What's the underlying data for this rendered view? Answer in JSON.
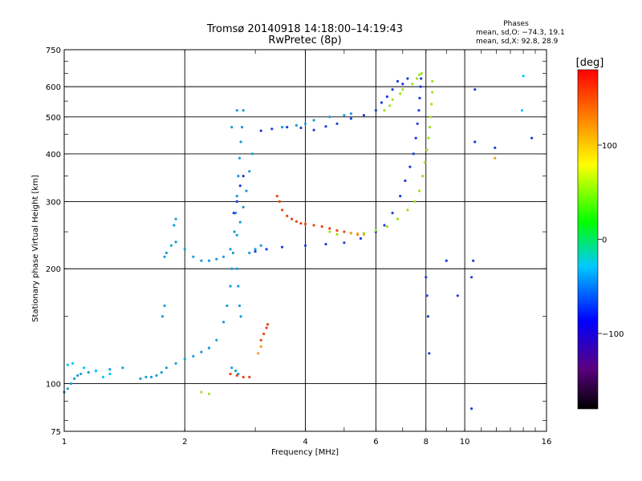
{
  "chart_data": {
    "type": "scatter",
    "title": "Tromsø 20140918 14:18:00–14:19:43",
    "subtitle": "RwPretec (8p)",
    "phase_stats": {
      "heading": "Phases",
      "line_o": "mean, sd,O: −74.3, 19.1",
      "line_x": "mean, sd,X:  92.8, 28.9"
    },
    "xlabel": "Frequency [MHz]",
    "ylabel": "Stationary phase Virtual Height [km]",
    "x_scale": "log",
    "y_scale": "log",
    "xlim": [
      1,
      16
    ],
    "ylim": [
      75,
      750
    ],
    "x_ticks": [
      1,
      2,
      4,
      6,
      8,
      10,
      16
    ],
    "y_ticks": [
      75,
      100,
      200,
      300,
      400,
      500,
      600,
      750
    ],
    "grid": true,
    "colorbar": {
      "label": "[deg]",
      "range": [
        -180,
        180
      ],
      "ticks": [
        100,
        0,
        -100
      ],
      "colors": [
        "#000000",
        "#5a0080",
        "#0000ff",
        "#00c8ff",
        "#00ff00",
        "#ffff00",
        "#ff8000",
        "#ff0000"
      ]
    },
    "series": [
      {
        "color": "#1a9bd7",
        "points": [
          [
            1.0,
            95
          ],
          [
            1.02,
            97
          ],
          [
            1.04,
            100
          ],
          [
            1.06,
            103
          ],
          [
            1.08,
            105
          ],
          [
            1.1,
            106
          ],
          [
            1.15,
            107
          ],
          [
            1.2,
            108
          ],
          [
            1.3,
            109
          ],
          [
            1.4,
            110
          ],
          [
            1.55,
            103
          ],
          [
            1.6,
            104
          ],
          [
            1.65,
            104
          ],
          [
            1.7,
            105
          ],
          [
            1.75,
            107
          ],
          [
            1.8,
            110
          ],
          [
            1.9,
            113
          ],
          [
            2.0,
            116
          ],
          [
            2.1,
            118
          ],
          [
            2.2,
            121
          ],
          [
            2.3,
            124
          ],
          [
            2.4,
            130
          ],
          [
            2.5,
            145
          ],
          [
            2.55,
            160
          ],
          [
            2.6,
            180
          ],
          [
            2.62,
            200
          ],
          [
            2.64,
            220
          ],
          [
            2.66,
            250
          ],
          [
            2.68,
            280
          ],
          [
            2.7,
            310
          ],
          [
            2.72,
            350
          ],
          [
            2.74,
            390
          ],
          [
            2.76,
            430
          ],
          [
            2.78,
            470
          ],
          [
            2.8,
            520
          ],
          [
            2.7,
            200
          ],
          [
            2.72,
            180
          ],
          [
            2.74,
            160
          ],
          [
            2.76,
            150
          ],
          [
            1.78,
            215
          ],
          [
            1.8,
            220
          ],
          [
            1.85,
            230
          ],
          [
            1.9,
            235
          ],
          [
            2.0,
            225
          ],
          [
            2.1,
            215
          ],
          [
            2.2,
            210
          ],
          [
            2.3,
            210
          ],
          [
            2.4,
            212
          ],
          [
            2.5,
            215
          ],
          [
            2.6,
            225
          ],
          [
            2.7,
            245
          ],
          [
            2.75,
            265
          ],
          [
            2.8,
            290
          ],
          [
            2.85,
            320
          ],
          [
            2.9,
            360
          ],
          [
            2.95,
            400
          ],
          [
            2.9,
            220
          ],
          [
            3.0,
            225
          ],
          [
            3.1,
            230
          ],
          [
            1.88,
            260
          ],
          [
            1.9,
            270
          ],
          [
            1.76,
            150
          ],
          [
            1.78,
            160
          ],
          [
            2.62,
            110
          ],
          [
            2.68,
            108
          ],
          [
            2.72,
            106
          ],
          [
            2.62,
            470
          ],
          [
            2.7,
            520
          ],
          [
            3.5,
            470
          ],
          [
            3.8,
            475
          ],
          [
            4.0,
            480
          ],
          [
            4.2,
            490
          ],
          [
            4.6,
            500
          ],
          [
            5.0,
            505
          ],
          [
            5.2,
            510
          ]
        ]
      },
      {
        "color": "#1e3cdc",
        "points": [
          [
            3.0,
            222
          ],
          [
            3.2,
            225
          ],
          [
            3.5,
            228
          ],
          [
            4.0,
            230
          ],
          [
            4.5,
            232
          ],
          [
            5.0,
            234
          ],
          [
            5.5,
            240
          ],
          [
            6.0,
            250
          ],
          [
            6.3,
            260
          ],
          [
            6.6,
            280
          ],
          [
            6.9,
            310
          ],
          [
            7.1,
            340
          ],
          [
            7.3,
            370
          ],
          [
            7.45,
            400
          ],
          [
            7.55,
            440
          ],
          [
            7.62,
            480
          ],
          [
            7.68,
            520
          ],
          [
            7.72,
            560
          ],
          [
            7.76,
            600
          ],
          [
            7.78,
            630
          ],
          [
            6.2,
            545
          ],
          [
            6.4,
            565
          ],
          [
            6.6,
            590
          ],
          [
            6.8,
            620
          ],
          [
            3.1,
            460
          ],
          [
            3.3,
            465
          ],
          [
            3.6,
            470
          ],
          [
            3.9,
            468
          ],
          [
            4.2,
            462
          ],
          [
            4.5,
            472
          ],
          [
            4.8,
            480
          ],
          [
            5.2,
            495
          ],
          [
            5.6,
            505
          ],
          [
            6.0,
            520
          ],
          [
            2.65,
            280
          ],
          [
            2.7,
            300
          ],
          [
            2.75,
            330
          ],
          [
            2.8,
            350
          ],
          [
            7.0,
            610
          ],
          [
            7.2,
            630
          ],
          [
            8.0,
            190
          ],
          [
            8.05,
            170
          ],
          [
            8.1,
            150
          ],
          [
            8.15,
            120
          ],
          [
            10.4,
            190
          ],
          [
            10.5,
            210
          ]
        ]
      },
      {
        "color": "#e64616",
        "points": [
          [
            3.4,
            310
          ],
          [
            3.45,
            300
          ],
          [
            3.5,
            285
          ],
          [
            3.6,
            275
          ],
          [
            3.7,
            270
          ],
          [
            3.8,
            266
          ],
          [
            3.9,
            263
          ],
          [
            4.0,
            262
          ],
          [
            4.2,
            260
          ],
          [
            4.4,
            258
          ],
          [
            4.6,
            255
          ],
          [
            4.8,
            252
          ],
          [
            5.0,
            250
          ],
          [
            5.2,
            248
          ],
          [
            5.4,
            246
          ],
          [
            3.1,
            130
          ],
          [
            3.15,
            135
          ],
          [
            3.2,
            140
          ],
          [
            3.22,
            143
          ],
          [
            2.6,
            106
          ],
          [
            2.7,
            105
          ],
          [
            2.8,
            104
          ],
          [
            2.9,
            104
          ]
        ]
      },
      {
        "color": "#f0a01e",
        "points": [
          [
            5.2,
            248
          ],
          [
            5.4,
            247
          ],
          [
            5.6,
            246
          ],
          [
            3.05,
            120
          ],
          [
            3.1,
            125
          ],
          [
            11.9,
            390
          ]
        ]
      },
      {
        "color": "#a0e01e",
        "points": [
          [
            5.6,
            248
          ],
          [
            6.0,
            252
          ],
          [
            6.4,
            258
          ],
          [
            6.8,
            270
          ],
          [
            7.2,
            285
          ],
          [
            7.5,
            300
          ],
          [
            7.7,
            320
          ],
          [
            7.85,
            350
          ],
          [
            7.95,
            380
          ],
          [
            8.05,
            410
          ],
          [
            8.12,
            440
          ],
          [
            8.18,
            470
          ],
          [
            8.22,
            500
          ],
          [
            8.26,
            540
          ],
          [
            8.3,
            580
          ],
          [
            8.3,
            620
          ],
          [
            6.3,
            520
          ],
          [
            6.5,
            535
          ],
          [
            6.6,
            555
          ],
          [
            6.9,
            575
          ],
          [
            7.0,
            590
          ],
          [
            7.4,
            610
          ],
          [
            7.6,
            630
          ],
          [
            7.7,
            645
          ],
          [
            7.8,
            650
          ],
          [
            2.2,
            95
          ],
          [
            2.3,
            94
          ],
          [
            4.6,
            250
          ],
          [
            4.8,
            246
          ]
        ]
      },
      {
        "color": "#00c8ff",
        "points": [
          [
            1.02,
            112
          ],
          [
            1.05,
            113
          ],
          [
            1.12,
            110
          ],
          [
            1.3,
            106
          ],
          [
            1.2,
            108
          ],
          [
            1.25,
            104
          ],
          [
            14.0,
            640
          ],
          [
            13.9,
            520
          ]
        ]
      },
      {
        "color": "#1e3cdc",
        "points": [
          [
            10.6,
            590
          ],
          [
            14.7,
            440
          ],
          [
            10.6,
            430
          ],
          [
            11.9,
            415
          ],
          [
            9.0,
            210
          ],
          [
            9.6,
            170
          ],
          [
            10.4,
            86
          ]
        ]
      }
    ]
  }
}
